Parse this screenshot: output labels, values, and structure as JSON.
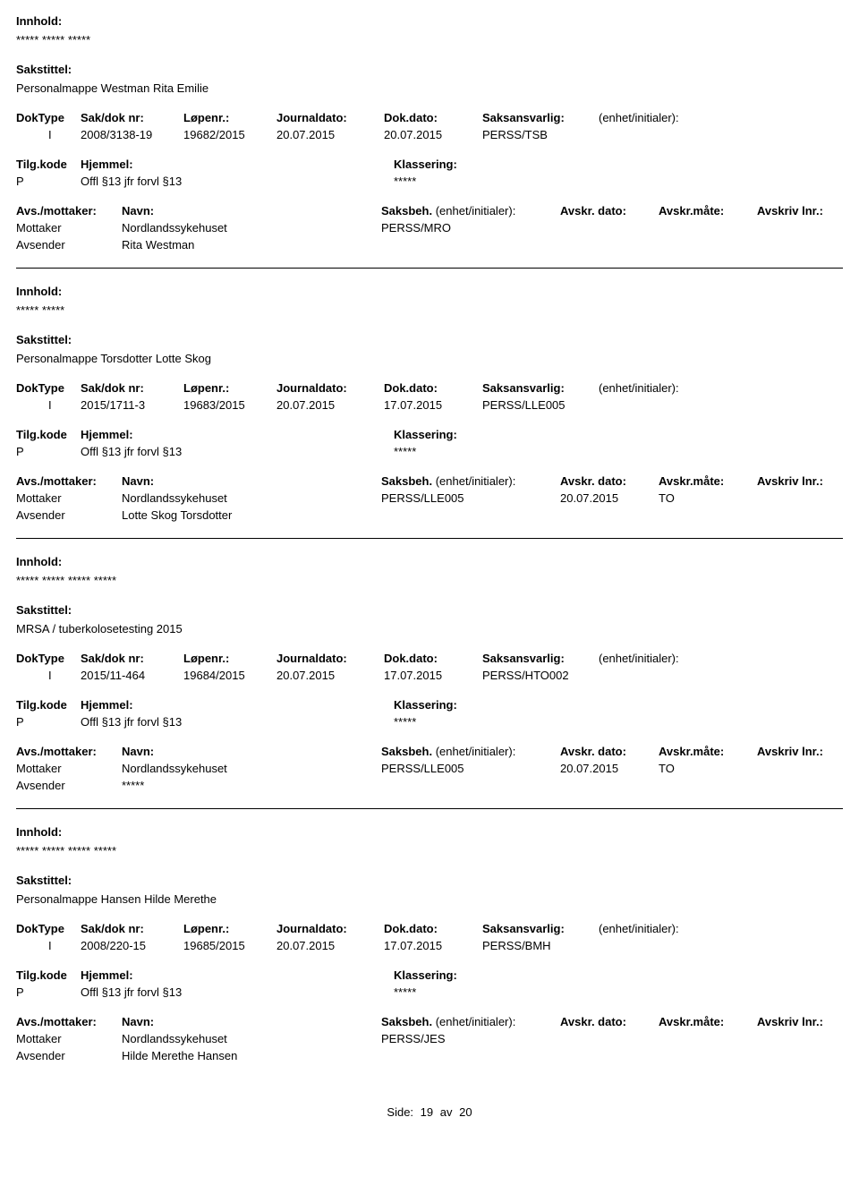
{
  "labels": {
    "innhold": "Innhold:",
    "sakstittel": "Sakstittel:",
    "dokType": "DokType",
    "sakDokNr": "Sak/dok nr:",
    "lopenr": "Løpenr.:",
    "journaldato": "Journaldato:",
    "dokDato": "Dok.dato:",
    "saksansvarlig": "Saksansvarlig:",
    "enhetInitialer": "(enhet/initialer):",
    "tilgKode": "Tilg.kode",
    "hjemmel": "Hjemmel:",
    "klassering": "Klassering:",
    "avsMottaker": "Avs./mottaker:",
    "navn": "Navn:",
    "saksbeh": "Saksbeh.",
    "saksbehEnhet": "(enhet/initialer):",
    "avskrDato": "Avskr. dato:",
    "avskrMate": "Avskr.måte:",
    "avskrivLnr": "Avskriv lnr.:",
    "mottaker": "Mottaker",
    "avsender": "Avsender"
  },
  "records": [
    {
      "innhold": "***** ***** *****",
      "sakstittel": "Personalmappe Westman Rita Emilie",
      "dokType": "I",
      "sakDokNr": "2008/3138-19",
      "lopenr": "19682/2015",
      "journaldato": "20.07.2015",
      "dokDato": "20.07.2015",
      "saksansvarlig": "PERSS/TSB",
      "tilgKode": "P",
      "hjemmel": "Offl §13 jfr forvl §13",
      "klassering": "*****",
      "saksbeh": "PERSS/MRO",
      "avskrDato": "",
      "avskrMate": "",
      "mottakerNavn": "Nordlandssykehuset",
      "avsenderNavn": "Rita Westman"
    },
    {
      "innhold": "***** *****",
      "sakstittel": "Personalmappe Torsdotter Lotte Skog",
      "dokType": "I",
      "sakDokNr": "2015/1711-3",
      "lopenr": "19683/2015",
      "journaldato": "20.07.2015",
      "dokDato": "17.07.2015",
      "saksansvarlig": "PERSS/LLE005",
      "tilgKode": "P",
      "hjemmel": "Offl §13 jfr forvl §13",
      "klassering": "*****",
      "saksbeh": "PERSS/LLE005",
      "avskrDato": "20.07.2015",
      "avskrMate": "TO",
      "mottakerNavn": "Nordlandssykehuset",
      "avsenderNavn": "Lotte Skog Torsdotter"
    },
    {
      "innhold": "***** ***** ***** *****",
      "sakstittel": "MRSA / tuberkolosetesting 2015",
      "dokType": "I",
      "sakDokNr": "2015/11-464",
      "lopenr": "19684/2015",
      "journaldato": "20.07.2015",
      "dokDato": "17.07.2015",
      "saksansvarlig": "PERSS/HTO002",
      "tilgKode": "P",
      "hjemmel": "Offl §13 jfr forvl §13",
      "klassering": "*****",
      "saksbeh": "PERSS/LLE005",
      "avskrDato": "20.07.2015",
      "avskrMate": "TO",
      "mottakerNavn": "Nordlandssykehuset",
      "avsenderNavn": "*****"
    },
    {
      "innhold": "***** ***** ***** *****",
      "sakstittel": "Personalmappe Hansen Hilde Merethe",
      "dokType": "I",
      "sakDokNr": "2008/220-15",
      "lopenr": "19685/2015",
      "journaldato": "20.07.2015",
      "dokDato": "17.07.2015",
      "saksansvarlig": "PERSS/BMH",
      "tilgKode": "P",
      "hjemmel": "Offl §13 jfr forvl §13",
      "klassering": "*****",
      "saksbeh": "PERSS/JES",
      "avskrDato": "",
      "avskrMate": "",
      "mottakerNavn": "Nordlandssykehuset",
      "avsenderNavn": "Hilde Merethe Hansen"
    }
  ],
  "footer": {
    "sideLabel": "Side:",
    "page": "19",
    "sep": "av",
    "total": "20"
  }
}
